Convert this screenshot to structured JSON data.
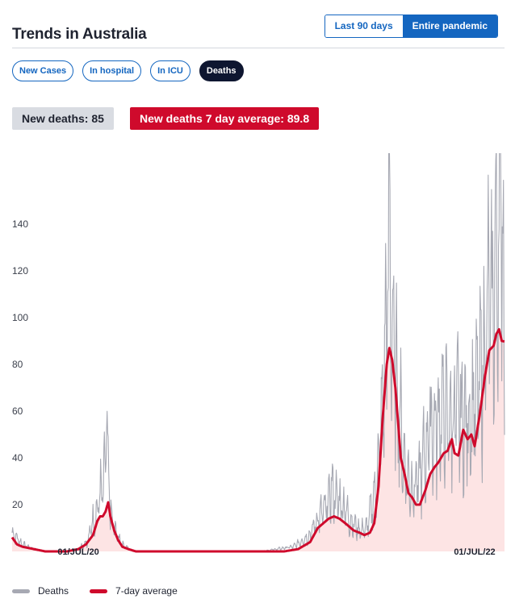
{
  "header": {
    "title": "Trends in Australia"
  },
  "range_toggle": {
    "options": [
      "Last 90 days",
      "Entire pandemic"
    ],
    "selected": "Entire pandemic"
  },
  "metric_tabs": {
    "items": [
      "New Cases",
      "In hospital",
      "In ICU",
      "Deaths"
    ],
    "selected": "Deaths"
  },
  "stats": {
    "daily_label": "New deaths: 85",
    "average_label": "New deaths 7 day average: 89.8"
  },
  "colors": {
    "accent": "#1466c0",
    "selected_tab": "#0e1630",
    "deaths": "#a7a9b3",
    "average": "#cf0a2c",
    "area_fill": "#fde4e4"
  },
  "chart_data": {
    "type": "line",
    "x_start": "2020-03-01",
    "x_end": "2022-08-25",
    "x_ticks": [
      {
        "date": "2020-07-01",
        "label": "01/JUL/20"
      },
      {
        "date": "2022-07-01",
        "label": "01/JUL/22"
      }
    ],
    "y_ticks": [
      20,
      40,
      60,
      80,
      100,
      120,
      140
    ],
    "ylim": [
      0,
      160
    ],
    "grid": false,
    "legend_position": "bottom-left",
    "series": [
      {
        "name": "Deaths",
        "kind": "daily",
        "points": [
          [
            "2020-03-01",
            8
          ],
          [
            "2020-03-20",
            3
          ],
          [
            "2020-04-10",
            1
          ],
          [
            "2020-05-01",
            0
          ],
          [
            "2020-06-10",
            0
          ],
          [
            "2020-07-01",
            1
          ],
          [
            "2020-07-20",
            5
          ],
          [
            "2020-07-25",
            12
          ],
          [
            "2020-08-01",
            14
          ],
          [
            "2020-08-05",
            18
          ],
          [
            "2020-08-08",
            22
          ],
          [
            "2020-08-12",
            26
          ],
          [
            "2020-08-16",
            25
          ],
          [
            "2020-08-20",
            40
          ],
          [
            "2020-08-22",
            57
          ],
          [
            "2020-08-25",
            30
          ],
          [
            "2020-09-01",
            12
          ],
          [
            "2020-09-08",
            8
          ],
          [
            "2020-09-20",
            3
          ],
          [
            "2020-10-10",
            0
          ],
          [
            "2021-01-01",
            0
          ],
          [
            "2021-06-01",
            0
          ],
          [
            "2021-08-01",
            2
          ],
          [
            "2021-09-01",
            7
          ],
          [
            "2021-09-15",
            14
          ],
          [
            "2021-10-01",
            18
          ],
          [
            "2021-10-10",
            27
          ],
          [
            "2021-10-20",
            22
          ],
          [
            "2021-11-01",
            20
          ],
          [
            "2021-11-15",
            13
          ],
          [
            "2021-12-01",
            9
          ],
          [
            "2021-12-15",
            10
          ],
          [
            "2022-01-01",
            28
          ],
          [
            "2022-01-10",
            50
          ],
          [
            "2022-01-20",
            100
          ],
          [
            "2022-01-25",
            133
          ],
          [
            "2022-02-01",
            85
          ],
          [
            "2022-02-10",
            68
          ],
          [
            "2022-02-20",
            40
          ],
          [
            "2022-03-01",
            30
          ],
          [
            "2022-03-10",
            28
          ],
          [
            "2022-03-20",
            30
          ],
          [
            "2022-04-01",
            42
          ],
          [
            "2022-04-10",
            55
          ],
          [
            "2022-04-20",
            52
          ],
          [
            "2022-05-01",
            60
          ],
          [
            "2022-05-15",
            55
          ],
          [
            "2022-06-01",
            60
          ],
          [
            "2022-06-15",
            55
          ],
          [
            "2022-07-01",
            62
          ],
          [
            "2022-07-15",
            78
          ],
          [
            "2022-07-25",
            103
          ],
          [
            "2022-08-01",
            100
          ],
          [
            "2022-08-10",
            125
          ],
          [
            "2022-08-20",
            156
          ],
          [
            "2022-08-25",
            85
          ]
        ]
      },
      {
        "name": "7-day average",
        "kind": "average",
        "points": [
          [
            "2020-03-01",
            6
          ],
          [
            "2020-03-10",
            3
          ],
          [
            "2020-03-20",
            2
          ],
          [
            "2020-04-10",
            1
          ],
          [
            "2020-05-01",
            0
          ],
          [
            "2020-06-10",
            0
          ],
          [
            "2020-07-01",
            1
          ],
          [
            "2020-07-15",
            3
          ],
          [
            "2020-07-28",
            7
          ],
          [
            "2020-08-05",
            13
          ],
          [
            "2020-08-10",
            15
          ],
          [
            "2020-08-15",
            15
          ],
          [
            "2020-08-20",
            17
          ],
          [
            "2020-08-25",
            21
          ],
          [
            "2020-08-29",
            15
          ],
          [
            "2020-09-05",
            9
          ],
          [
            "2020-09-12",
            5
          ],
          [
            "2020-09-20",
            2
          ],
          [
            "2020-10-01",
            1
          ],
          [
            "2020-10-15",
            0
          ],
          [
            "2021-01-01",
            0
          ],
          [
            "2021-06-01",
            0
          ],
          [
            "2021-07-15",
            0
          ],
          [
            "2021-08-10",
            1
          ],
          [
            "2021-09-01",
            4
          ],
          [
            "2021-09-15",
            10
          ],
          [
            "2021-09-25",
            12
          ],
          [
            "2021-10-05",
            14
          ],
          [
            "2021-10-15",
            15
          ],
          [
            "2021-10-25",
            14
          ],
          [
            "2021-11-05",
            12
          ],
          [
            "2021-11-20",
            9
          ],
          [
            "2021-12-01",
            8
          ],
          [
            "2021-12-10",
            7
          ],
          [
            "2021-12-20",
            8
          ],
          [
            "2021-12-28",
            12
          ],
          [
            "2022-01-05",
            28
          ],
          [
            "2022-01-12",
            55
          ],
          [
            "2022-01-20",
            80
          ],
          [
            "2022-01-25",
            87
          ],
          [
            "2022-01-30",
            82
          ],
          [
            "2022-02-05",
            70
          ],
          [
            "2022-02-10",
            55
          ],
          [
            "2022-02-15",
            40
          ],
          [
            "2022-02-22",
            33
          ],
          [
            "2022-03-01",
            25
          ],
          [
            "2022-03-08",
            23
          ],
          [
            "2022-03-15",
            20
          ],
          [
            "2022-03-22",
            20
          ],
          [
            "2022-04-01",
            26
          ],
          [
            "2022-04-10",
            33
          ],
          [
            "2022-04-18",
            36
          ],
          [
            "2022-04-25",
            38
          ],
          [
            "2022-05-05",
            42
          ],
          [
            "2022-05-12",
            43
          ],
          [
            "2022-05-20",
            48
          ],
          [
            "2022-05-25",
            42
          ],
          [
            "2022-06-01",
            41
          ],
          [
            "2022-06-10",
            52
          ],
          [
            "2022-06-18",
            48
          ],
          [
            "2022-06-25",
            50
          ],
          [
            "2022-07-01",
            45
          ],
          [
            "2022-07-10",
            58
          ],
          [
            "2022-07-20",
            75
          ],
          [
            "2022-07-28",
            86
          ],
          [
            "2022-08-05",
            88
          ],
          [
            "2022-08-10",
            93
          ],
          [
            "2022-08-15",
            95
          ],
          [
            "2022-08-20",
            90
          ],
          [
            "2022-08-25",
            89.8
          ]
        ]
      }
    ]
  }
}
